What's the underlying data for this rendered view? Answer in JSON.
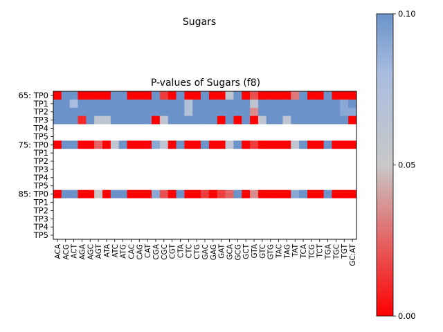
{
  "figure": {
    "suptitle": "Sugars",
    "axes_title": "P-values of Sugars (f8)"
  },
  "colors": {
    "low": "#ff0000",
    "mid": "#c8c8c8",
    "high": "#6b93c9",
    "missing": "#ffffff"
  },
  "chart_data": {
    "type": "heatmap",
    "title": "P-values of Sugars (f8)",
    "row_labels": [
      "65: TP0",
      "TP1",
      "TP2",
      "TP3",
      "TP4",
      "TP5",
      "75: TP0",
      "TP1",
      "TP2",
      "TP3",
      "TP4",
      "TP5",
      "85: TP0",
      "TP1",
      "TP2",
      "TP3",
      "TP4",
      "TP5"
    ],
    "col_labels": [
      "ACA",
      "ACG",
      "ACT",
      "AGA",
      "AGC",
      "AGT",
      "ATA",
      "ATC",
      "ATG",
      "CAC",
      "CAG",
      "CAT",
      "CGA",
      "CGC",
      "CGT",
      "CTA",
      "CTC",
      "CTG",
      "GAC",
      "GAG",
      "GAT",
      "GCA",
      "GCG",
      "GCT",
      "GTA",
      "GTC",
      "GTG",
      "TAC",
      "TAG",
      "TAT",
      "TCA",
      "TCG",
      "TCT",
      "TGA",
      "TGC",
      "TGT",
      "GC:AT"
    ],
    "colorbar": {
      "min": 0.0,
      "max": 0.1,
      "ticks": [
        0.0,
        0.05,
        0.1
      ],
      "tick_labels": [
        "0.00",
        "0.05",
        "0.10"
      ]
    },
    "values": [
      [
        0.0,
        0.1,
        0.1,
        0.0,
        0.0,
        0.0,
        0.0,
        0.1,
        0.1,
        0.0,
        0.0,
        0.0,
        0.1,
        0.015,
        0.0,
        0.1,
        0.0,
        0.0,
        0.1,
        0.0,
        0.0,
        0.06,
        0.1,
        0.0,
        0.02,
        0.0,
        0.0,
        0.0,
        0.0,
        0.03,
        0.1,
        0.0,
        0.0,
        0.1,
        0.0,
        0.0,
        0.0
      ],
      [
        0.1,
        0.1,
        0.08,
        0.1,
        0.1,
        0.1,
        0.1,
        0.1,
        0.1,
        0.1,
        0.1,
        0.1,
        0.1,
        0.1,
        0.1,
        0.1,
        0.07,
        0.1,
        0.1,
        0.1,
        0.1,
        0.1,
        0.1,
        0.1,
        0.06,
        0.1,
        0.1,
        0.1,
        0.1,
        0.1,
        0.1,
        0.1,
        0.1,
        0.1,
        0.1,
        0.09,
        0.1
      ],
      [
        0.1,
        0.1,
        0.1,
        0.1,
        0.1,
        0.1,
        0.1,
        0.1,
        0.1,
        0.1,
        0.1,
        0.1,
        0.1,
        0.1,
        0.1,
        0.1,
        0.07,
        0.1,
        0.1,
        0.1,
        0.1,
        0.1,
        0.1,
        0.1,
        0.035,
        0.1,
        0.1,
        0.1,
        0.1,
        0.1,
        0.1,
        0.1,
        0.1,
        0.1,
        0.1,
        0.09,
        0.09
      ],
      [
        0.1,
        0.1,
        0.1,
        0.01,
        0.1,
        0.06,
        0.06,
        0.1,
        0.1,
        0.1,
        0.1,
        0.1,
        0.0,
        0.06,
        0.1,
        0.1,
        0.1,
        0.1,
        0.1,
        0.1,
        0.0,
        0.1,
        0.0,
        0.1,
        0.0,
        0.06,
        0.1,
        0.1,
        0.06,
        0.1,
        0.1,
        0.1,
        0.1,
        0.1,
        0.1,
        0.1,
        0.0
      ],
      [
        null,
        null,
        null,
        null,
        null,
        null,
        null,
        null,
        null,
        null,
        null,
        null,
        null,
        null,
        null,
        null,
        null,
        null,
        null,
        null,
        null,
        null,
        null,
        null,
        null,
        null,
        null,
        null,
        null,
        null,
        null,
        null,
        null,
        null,
        null,
        null,
        null
      ],
      [
        null,
        null,
        null,
        null,
        null,
        null,
        null,
        null,
        null,
        null,
        null,
        null,
        null,
        null,
        null,
        null,
        null,
        null,
        null,
        null,
        null,
        null,
        null,
        null,
        null,
        null,
        null,
        null,
        null,
        null,
        null,
        null,
        null,
        null,
        null,
        null,
        null
      ],
      [
        0.0,
        0.1,
        0.1,
        0.0,
        0.0,
        0.025,
        0.0,
        0.06,
        0.1,
        0.0,
        0.0,
        0.0,
        0.09,
        0.06,
        0.0,
        0.1,
        0.0,
        0.0,
        0.1,
        0.0,
        0.0,
        0.06,
        0.1,
        0.0,
        0.015,
        0.0,
        0.0,
        0.0,
        0.0,
        0.06,
        0.1,
        0.0,
        0.0,
        0.1,
        0.0,
        0.0,
        0.0
      ],
      [
        null,
        null,
        null,
        null,
        null,
        null,
        null,
        null,
        null,
        null,
        null,
        null,
        null,
        null,
        null,
        null,
        null,
        null,
        null,
        null,
        null,
        null,
        null,
        null,
        null,
        null,
        null,
        null,
        null,
        null,
        null,
        null,
        null,
        null,
        null,
        null,
        null
      ],
      [
        null,
        null,
        null,
        null,
        null,
        null,
        null,
        null,
        null,
        null,
        null,
        null,
        null,
        null,
        null,
        null,
        null,
        null,
        null,
        null,
        null,
        null,
        null,
        null,
        null,
        null,
        null,
        null,
        null,
        null,
        null,
        null,
        null,
        null,
        null,
        null,
        null
      ],
      [
        null,
        null,
        null,
        null,
        null,
        null,
        null,
        null,
        null,
        null,
        null,
        null,
        null,
        null,
        null,
        null,
        null,
        null,
        null,
        null,
        null,
        null,
        null,
        null,
        null,
        null,
        null,
        null,
        null,
        null,
        null,
        null,
        null,
        null,
        null,
        null,
        null
      ],
      [
        null,
        null,
        null,
        null,
        null,
        null,
        null,
        null,
        null,
        null,
        null,
        null,
        null,
        null,
        null,
        null,
        null,
        null,
        null,
        null,
        null,
        null,
        null,
        null,
        null,
        null,
        null,
        null,
        null,
        null,
        null,
        null,
        null,
        null,
        null,
        null,
        null
      ],
      [
        null,
        null,
        null,
        null,
        null,
        null,
        null,
        null,
        null,
        null,
        null,
        null,
        null,
        null,
        null,
        null,
        null,
        null,
        null,
        null,
        null,
        null,
        null,
        null,
        null,
        null,
        null,
        null,
        null,
        null,
        null,
        null,
        null,
        null,
        null,
        null,
        null
      ],
      [
        0.0,
        0.1,
        0.1,
        0.0,
        0.0,
        0.05,
        0.0,
        0.1,
        0.1,
        0.0,
        0.0,
        0.0,
        0.09,
        0.02,
        0.0,
        0.1,
        0.0,
        0.0,
        0.015,
        0.0,
        0.015,
        0.025,
        0.1,
        0.0,
        0.035,
        0.0,
        0.0,
        0.0,
        0.0,
        0.09,
        0.1,
        0.0,
        0.0,
        0.1,
        0.0,
        0.0,
        0.0
      ],
      [
        null,
        null,
        null,
        null,
        null,
        null,
        null,
        null,
        null,
        null,
        null,
        null,
        null,
        null,
        null,
        null,
        null,
        null,
        null,
        null,
        null,
        null,
        null,
        null,
        null,
        null,
        null,
        null,
        null,
        null,
        null,
        null,
        null,
        null,
        null,
        null,
        null
      ],
      [
        null,
        null,
        null,
        null,
        null,
        null,
        null,
        null,
        null,
        null,
        null,
        null,
        null,
        null,
        null,
        null,
        null,
        null,
        null,
        null,
        null,
        null,
        null,
        null,
        null,
        null,
        null,
        null,
        null,
        null,
        null,
        null,
        null,
        null,
        null,
        null,
        null
      ],
      [
        null,
        null,
        null,
        null,
        null,
        null,
        null,
        null,
        null,
        null,
        null,
        null,
        null,
        null,
        null,
        null,
        null,
        null,
        null,
        null,
        null,
        null,
        null,
        null,
        null,
        null,
        null,
        null,
        null,
        null,
        null,
        null,
        null,
        null,
        null,
        null,
        null
      ],
      [
        null,
        null,
        null,
        null,
        null,
        null,
        null,
        null,
        null,
        null,
        null,
        null,
        null,
        null,
        null,
        null,
        null,
        null,
        null,
        null,
        null,
        null,
        null,
        null,
        null,
        null,
        null,
        null,
        null,
        null,
        null,
        null,
        null,
        null,
        null,
        null,
        null
      ],
      [
        null,
        null,
        null,
        null,
        null,
        null,
        null,
        null,
        null,
        null,
        null,
        null,
        null,
        null,
        null,
        null,
        null,
        null,
        null,
        null,
        null,
        null,
        null,
        null,
        null,
        null,
        null,
        null,
        null,
        null,
        null,
        null,
        null,
        null,
        null,
        null,
        null
      ]
    ]
  }
}
